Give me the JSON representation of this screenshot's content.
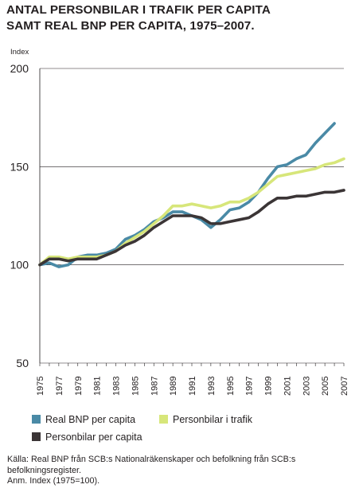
{
  "title_lines": [
    "ANTAL PERSONBILAR I TRAFIK PER CAPITA",
    "SAMT REAL BNP PER CAPITA, 1975–2007."
  ],
  "source_lines": [
    "Källa: Real BNP från SCB:s Nationalräkenskaper och befolkning från SCB:s befolkningsregister.",
    "Anm. Index (1975=100)."
  ],
  "chart_data": {
    "type": "line",
    "ylabel": "Index",
    "xlabel": "",
    "ylim": [
      50,
      200
    ],
    "yticks": [
      50,
      100,
      150,
      200
    ],
    "grid": "horizontal",
    "legend_position": "bottom",
    "x": [
      1975,
      1976,
      1977,
      1978,
      1979,
      1980,
      1981,
      1982,
      1983,
      1984,
      1985,
      1986,
      1987,
      1988,
      1989,
      1990,
      1991,
      1992,
      1993,
      1994,
      1995,
      1996,
      1997,
      1998,
      1999,
      2000,
      2001,
      2002,
      2003,
      2004,
      2005,
      2006,
      2007
    ],
    "xtick_labels": [
      "1975",
      "1977",
      "1979",
      "1981",
      "1983",
      "1985",
      "1987",
      "1989",
      "1991",
      "1993",
      "1995",
      "1997",
      "1999",
      "2001",
      "2003",
      "2005",
      "2007"
    ],
    "series": [
      {
        "name": "Real BNP per capita",
        "color": "#4a8aa6",
        "values": [
          100,
          101,
          99,
          100,
          104,
          105,
          105,
          106,
          108,
          113,
          115,
          118,
          122,
          124,
          127,
          127,
          125,
          123,
          119,
          123,
          128,
          129,
          132,
          137,
          144,
          150,
          151,
          154,
          156,
          162,
          167,
          172,
          null
        ]
      },
      {
        "name": "Personbilar i trafik",
        "color": "#d7e67a",
        "values": [
          100,
          104,
          104,
          103,
          104,
          104,
          104,
          105,
          107,
          111,
          114,
          117,
          121,
          125,
          130,
          130,
          131,
          130,
          129,
          130,
          132,
          132,
          134,
          137,
          141,
          145,
          146,
          147,
          148,
          149,
          151,
          152,
          154
        ]
      },
      {
        "name": "Personbilar per capita",
        "color": "#3b3536",
        "values": [
          100,
          103,
          103,
          102,
          103,
          103,
          103,
          105,
          107,
          110,
          112,
          115,
          119,
          122,
          125,
          125,
          125,
          124,
          121,
          121,
          122,
          123,
          124,
          127,
          131,
          134,
          134,
          135,
          135,
          136,
          137,
          137,
          138
        ]
      }
    ]
  }
}
